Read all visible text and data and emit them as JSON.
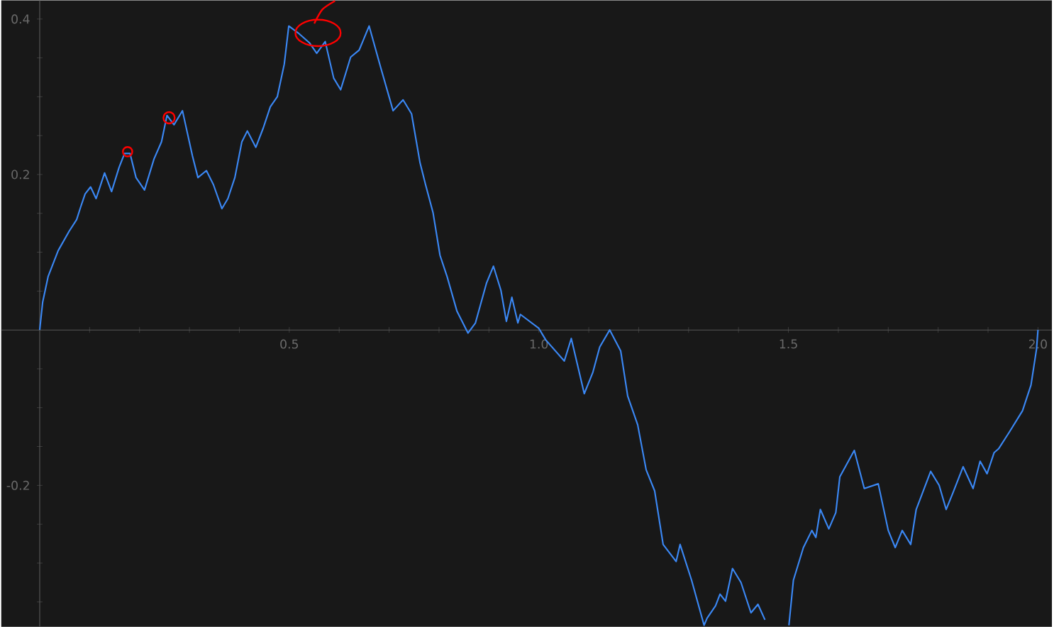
{
  "chart_data": {
    "type": "line",
    "x": [
      0,
      0.006,
      0.017,
      0.037,
      0.059,
      0.074,
      0.082,
      0.091,
      0.102,
      0.113,
      0.13,
      0.144,
      0.159,
      0.17,
      0.181,
      0.193,
      0.21,
      0.229,
      0.244,
      0.255,
      0.269,
      0.286,
      0.306,
      0.317,
      0.334,
      0.348,
      0.365,
      0.377,
      0.391,
      0.405,
      0.416,
      0.433,
      0.448,
      0.462,
      0.476,
      0.49,
      0.499,
      0.518,
      0.541,
      0.555,
      0.572,
      0.589,
      0.603,
      0.623,
      0.64,
      0.66,
      0.683,
      0.708,
      0.728,
      0.745,
      0.762,
      0.773,
      0.788,
      0.802,
      0.816,
      0.836,
      0.858,
      0.873,
      0.895,
      0.909,
      0.924,
      0.935,
      0.946,
      0.958,
      0.963,
      1.0,
      1.014,
      1.051,
      1.065,
      1.091,
      1.108,
      1.122,
      1.142,
      1.164,
      1.178,
      1.198,
      1.215,
      1.232,
      1.249,
      1.275,
      1.283,
      1.306,
      1.331,
      1.337,
      1.354,
      1.363,
      1.374,
      1.388,
      1.405,
      1.425,
      1.439,
      1.453,
      1.48,
      1.501,
      1.51,
      1.53,
      1.547,
      1.555,
      1.564,
      1.581,
      1.595,
      1.603,
      1.632,
      1.652,
      1.68,
      1.7,
      1.714,
      1.728,
      1.745,
      1.756,
      1.785,
      1.802,
      1.816,
      1.83,
      1.85,
      1.87,
      1.884,
      1.898,
      1.912,
      1.921,
      1.943,
      1.969,
      1.986,
      1.997,
      2.0
    ],
    "series": [
      {
        "color": "#3b88f5",
        "values": [
          0,
          0.036,
          0.069,
          0.102,
          0.127,
          0.142,
          0.158,
          0.175,
          0.184,
          0.169,
          0.202,
          0.178,
          0.209,
          0.227,
          0.227,
          0.196,
          0.18,
          0.22,
          0.242,
          0.276,
          0.264,
          0.282,
          0.224,
          0.196,
          0.205,
          0.187,
          0.156,
          0.169,
          0.196,
          0.242,
          0.256,
          0.235,
          0.26,
          0.287,
          0.3,
          0.342,
          0.391,
          0.382,
          0.369,
          0.356,
          0.371,
          0.324,
          0.309,
          0.351,
          0.36,
          0.391,
          0.338,
          0.282,
          0.296,
          0.278,
          0.215,
          0.187,
          0.151,
          0.096,
          0.069,
          0.024,
          -0.004,
          0.009,
          0.06,
          0.082,
          0.051,
          0.011,
          0.042,
          0.009,
          0.02,
          0.002,
          -0.013,
          -0.04,
          -0.011,
          -0.082,
          -0.055,
          -0.022,
          0,
          -0.027,
          -0.085,
          -0.122,
          -0.18,
          -0.207,
          -0.276,
          -0.298,
          -0.276,
          -0.322,
          -0.38,
          -0.371,
          -0.355,
          -0.34,
          -0.349,
          -0.307,
          -0.325,
          -0.364,
          -0.353,
          -0.373,
          null,
          -0.38,
          -0.322,
          -0.28,
          -0.258,
          -0.267,
          -0.231,
          -0.256,
          -0.235,
          -0.189,
          -0.155,
          -0.204,
          -0.198,
          -0.258,
          -0.28,
          -0.258,
          -0.276,
          -0.231,
          -0.182,
          -0.2,
          -0.231,
          -0.209,
          -0.176,
          -0.204,
          -0.169,
          -0.185,
          -0.158,
          -0.153,
          -0.131,
          -0.104,
          -0.071,
          -0.025,
          0
        ]
      }
    ],
    "xlim": [
      -0.077,
      2.028
    ],
    "ylim": [
      -0.382,
      0.424
    ],
    "xticks": [
      {
        "value": 0.1,
        "label": null
      },
      {
        "value": 0.2,
        "label": null
      },
      {
        "value": 0.3,
        "label": null
      },
      {
        "value": 0.4,
        "label": null
      },
      0.5,
      {
        "value": 0.6,
        "label": null
      },
      {
        "value": 0.7,
        "label": null
      },
      {
        "value": 0.8,
        "label": null
      },
      {
        "value": 0.9,
        "label": null
      },
      {
        "value": 1.0,
        "label": "1.0"
      },
      {
        "value": 1.1,
        "label": null
      },
      {
        "value": 1.2,
        "label": null
      },
      {
        "value": 1.3,
        "label": null
      },
      {
        "value": 1.4,
        "label": null
      },
      1.5,
      {
        "value": 1.6,
        "label": null
      },
      {
        "value": 1.7,
        "label": null
      },
      {
        "value": 1.8,
        "label": null
      },
      {
        "value": 1.9,
        "label": null
      },
      {
        "value": 2.0,
        "label": "2.0"
      }
    ],
    "yticks": [
      {
        "value": -0.35,
        "label": null
      },
      {
        "value": -0.3,
        "label": null
      },
      {
        "value": -0.25,
        "label": null
      },
      -0.2,
      {
        "value": -0.15,
        "label": null
      },
      {
        "value": -0.1,
        "label": null
      },
      {
        "value": -0.05,
        "label": null
      },
      {
        "value": 0.05,
        "label": null
      },
      {
        "value": 0.1,
        "label": null
      },
      {
        "value": 0.15,
        "label": null
      },
      0.2,
      {
        "value": 0.25,
        "label": null
      },
      {
        "value": 0.3,
        "label": null
      },
      {
        "value": 0.35,
        "label": null
      },
      0.4
    ],
    "grid": false
  }
}
